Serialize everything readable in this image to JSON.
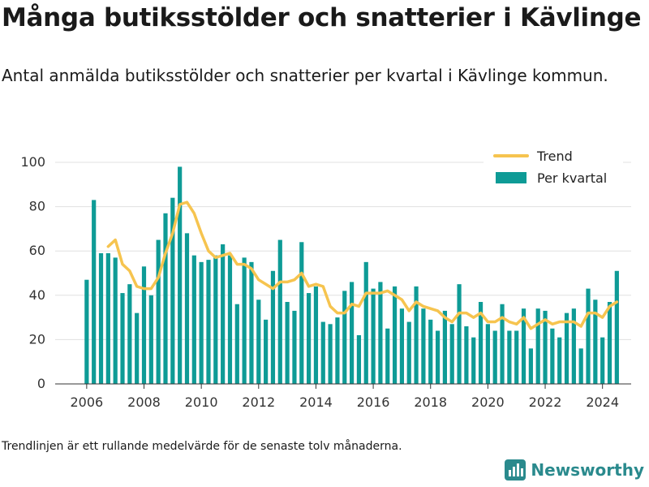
{
  "header": {
    "title": "Många butiksstölder och snatterier i Kävlinge",
    "subtitle": "Antal anmälda butiksstölder och snatterier per kvartal i Kävlinge kommun."
  },
  "footer": {
    "footnote": "Trendlinjen är ett rullande medelvärde för de senaste tolv månaderna.",
    "brand": "Newsworthy",
    "brand_icon": "bar-chart-logo-icon"
  },
  "colors": {
    "bars": "#0e9b96",
    "trend": "#f6c44f",
    "grid": "#e0e0e0",
    "brand": "#2a8a8d"
  },
  "chart_data": {
    "type": "bar",
    "x_start": 2006.0,
    "x_step": 0.25,
    "xlim": [
      2004.9,
      2025.0
    ],
    "ylim": [
      0,
      100
    ],
    "xticks": [
      2006,
      2008,
      2010,
      2012,
      2014,
      2016,
      2018,
      2020,
      2022,
      2024
    ],
    "yticks": [
      0,
      20,
      40,
      60,
      80,
      100
    ],
    "legend_position": "top-right",
    "grid": true,
    "series": [
      {
        "name": "Per kvartal",
        "type": "bar",
        "values": [
          47,
          83,
          59,
          59,
          57,
          41,
          45,
          32,
          53,
          40,
          65,
          77,
          84,
          98,
          68,
          58,
          55,
          56,
          58,
          63,
          58,
          36,
          57,
          55,
          38,
          29,
          51,
          65,
          37,
          33,
          64,
          41,
          44,
          28,
          27,
          30,
          42,
          46,
          22,
          55,
          43,
          46,
          25,
          44,
          34,
          28,
          44,
          34,
          29,
          24,
          33,
          27,
          45,
          26,
          21,
          37,
          27,
          24,
          36,
          24,
          24,
          34,
          16,
          34,
          33,
          25,
          21,
          32,
          34,
          16,
          43,
          38,
          21,
          37,
          51
        ]
      },
      {
        "name": "Trend",
        "type": "line",
        "x_start": 2006.75,
        "values": [
          62,
          65,
          54,
          51,
          44,
          43,
          43,
          48,
          59,
          68,
          81,
          82,
          77,
          68,
          60,
          57,
          58,
          59,
          54,
          54,
          52,
          47,
          45,
          43,
          46,
          46,
          47,
          50,
          44,
          45,
          44,
          35,
          32,
          32,
          36,
          35,
          41,
          41,
          41,
          42,
          40,
          38,
          33,
          37,
          35,
          34,
          33,
          30,
          28,
          32,
          32,
          30,
          32,
          28,
          28,
          30,
          28,
          27,
          30,
          25,
          27,
          29,
          27,
          28,
          28,
          28,
          26,
          32,
          32,
          30,
          35,
          37
        ]
      }
    ]
  }
}
